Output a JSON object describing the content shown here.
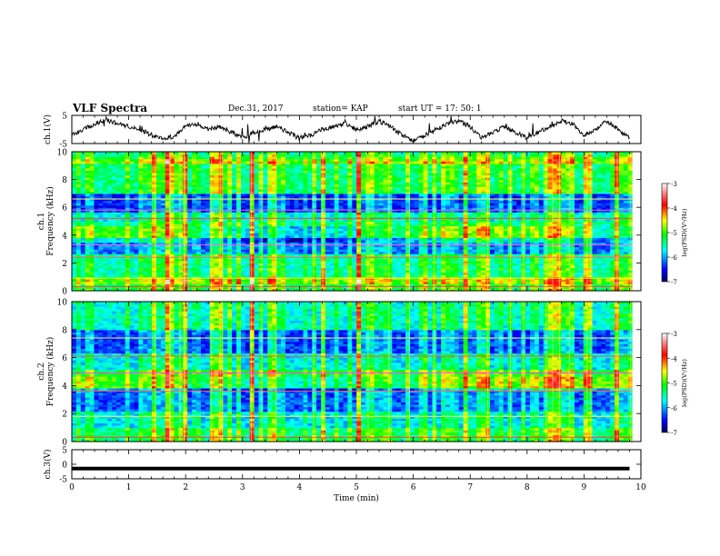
{
  "header": {
    "title": "VLF Spectra",
    "date": "Dec.31, 2017",
    "station": "station= KAP",
    "start_ut": "start  UT =   17: 50: 1"
  },
  "chart_data": [
    {
      "type": "line",
      "panel": "ch1-waveform",
      "ylabel": "ch.1(V)",
      "ylim": [
        -5,
        5
      ],
      "yticks": [
        "5",
        "-5"
      ],
      "xlim": [
        0,
        10
      ],
      "series": [
        {
          "x": [
            0,
            0.2,
            0.4,
            0.6,
            0.8,
            1.0,
            1.2,
            1.4,
            1.6,
            1.8,
            2.0,
            2.2,
            2.4,
            2.6,
            2.8,
            3.0,
            3.2,
            3.4,
            3.6,
            3.8,
            4.0,
            4.2,
            4.4,
            4.6,
            4.8,
            5.0,
            5.2,
            5.4,
            5.6,
            5.8,
            6.0,
            6.2,
            6.4,
            6.6,
            6.8,
            7.0,
            7.2,
            7.4,
            7.6,
            7.8,
            8.0,
            8.2,
            8.4,
            8.6,
            8.8,
            9.0,
            9.2,
            9.4,
            9.6,
            9.8
          ],
          "y": [
            -2,
            0,
            2,
            3.5,
            2,
            1,
            0,
            -2,
            -3,
            -2.5,
            1,
            2,
            0,
            1,
            -1,
            -3,
            -1,
            0,
            1,
            -1,
            -3,
            -2,
            0,
            1,
            2,
            0,
            1,
            3,
            1,
            -2,
            -4,
            -2,
            0,
            2,
            3,
            1,
            -3,
            -1,
            1,
            -1,
            -3,
            -1,
            1,
            3,
            2,
            -2,
            0,
            3,
            0,
            -3
          ]
        }
      ]
    },
    {
      "type": "heatmap",
      "panel": "ch1-spectrogram",
      "ylabel": "ch.1\nFrequency  (kHz)",
      "ylim": [
        0,
        10
      ],
      "yticks": [
        "0",
        "2",
        "4",
        "6",
        "8",
        "10"
      ],
      "xlim": [
        0,
        10
      ],
      "colorbar": {
        "label": "log(PSD)(V²/Hz)",
        "range": [
          -7,
          -3
        ],
        "ticks": [
          "-3",
          "-4",
          "-5",
          "-6",
          "-7"
        ]
      }
    },
    {
      "type": "heatmap",
      "panel": "ch2-spectrogram",
      "ylabel": "ch.2\nFrequency  (kHz)",
      "ylim": [
        0,
        10
      ],
      "yticks": [
        "0",
        "2",
        "4",
        "6",
        "8",
        "10"
      ],
      "xlim": [
        0,
        10
      ],
      "colorbar": {
        "label": "log(PSD)(V²/Hz)",
        "range": [
          -7,
          -3
        ],
        "ticks": [
          "-3",
          "-4",
          "-5",
          "-6",
          "-7"
        ]
      }
    },
    {
      "type": "line",
      "panel": "ch3-waveform",
      "ylabel": "ch.3(V)",
      "ylim": [
        -5,
        5
      ],
      "yticks": [
        "5",
        "0",
        "-5"
      ],
      "xlim": [
        0,
        10
      ],
      "series": [
        {
          "x": [
            0,
            9.8
          ],
          "y": [
            -1.5,
            -1.5
          ]
        }
      ]
    }
  ],
  "xaxis": {
    "label": "Time  (min)",
    "ticks": [
      "0",
      "1",
      "2",
      "3",
      "4",
      "5",
      "6",
      "7",
      "8",
      "9",
      "10"
    ]
  }
}
